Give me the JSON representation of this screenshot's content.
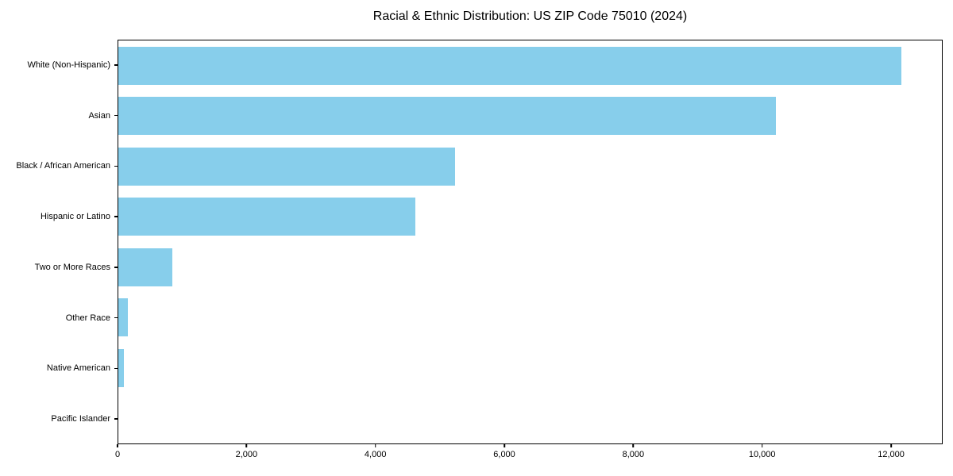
{
  "title": "Racial & Ethnic Distribution: US ZIP Code 75010 (2024)",
  "colors": {
    "bar": "#87CEEB",
    "axis": "#000000",
    "background": "#ffffff"
  },
  "chart_data": {
    "type": "bar",
    "orientation": "horizontal",
    "title": "Racial & Ethnic Distribution: US ZIP Code 75010 (2024)",
    "xlabel": "",
    "ylabel": "",
    "categories": [
      "White (Non-Hispanic)",
      "Asian",
      "Black / African American",
      "Hispanic or Latino",
      "Two or More Races",
      "Other Race",
      "Native American",
      "Pacific Islander"
    ],
    "values": [
      12170,
      10225,
      5230,
      4615,
      845,
      150,
      90,
      0
    ],
    "xlim": [
      0,
      12800
    ],
    "x_ticks": [
      0,
      2000,
      4000,
      6000,
      8000,
      10000,
      12000
    ],
    "x_tick_labels": [
      "0",
      "2,000",
      "4,000",
      "6,000",
      "8,000",
      "10,000",
      "12,000"
    ],
    "bar_color": "#87CEEB",
    "grid": false,
    "legend": null
  }
}
